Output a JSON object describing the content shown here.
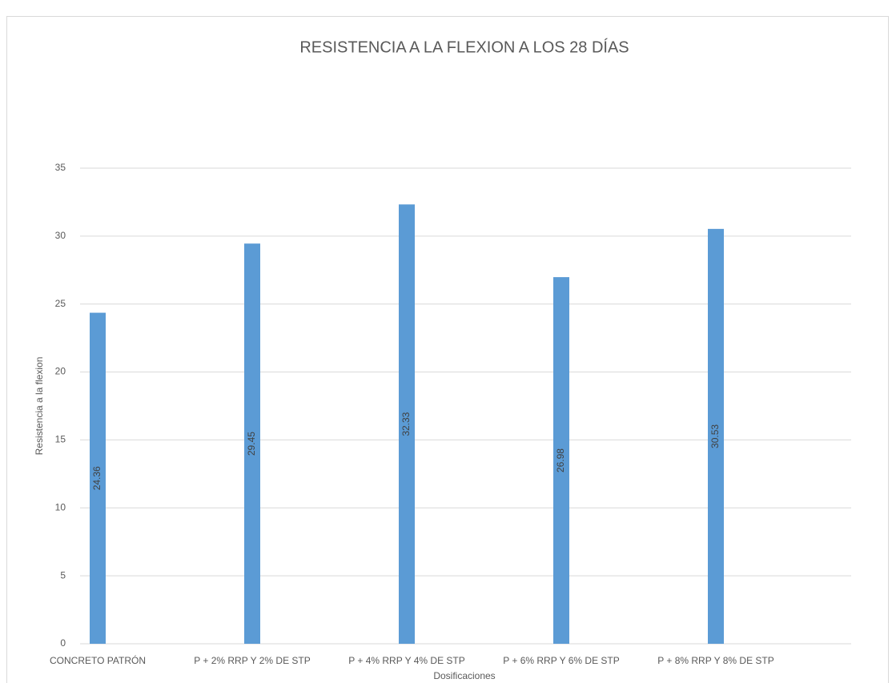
{
  "chart_data": {
    "type": "bar",
    "title": "RESISTENCIA A LA FLEXION A LOS 28 DÍAS",
    "x_label": "Dosificaciones",
    "y_label": "Resistencia a la flexion",
    "categories": [
      "CONCRETO PATRÓN",
      "P + 2% RRP Y 2% DE STP",
      "P + 4% RRP Y 4% DE STP",
      "P + 6% RRP Y 6% DE STP",
      "P + 8% RRP Y 8% DE STP"
    ],
    "values": [
      24.36,
      29.45,
      32.33,
      26.98,
      30.53
    ],
    "value_labels": [
      "24.36",
      "29.45",
      "32.33",
      "26.98",
      "30.53"
    ],
    "color": "#5b9bd5",
    "ylim": [
      0,
      35
    ],
    "yticks": [
      0,
      5,
      10,
      15,
      20,
      25,
      30,
      35
    ],
    "grid": true
  }
}
